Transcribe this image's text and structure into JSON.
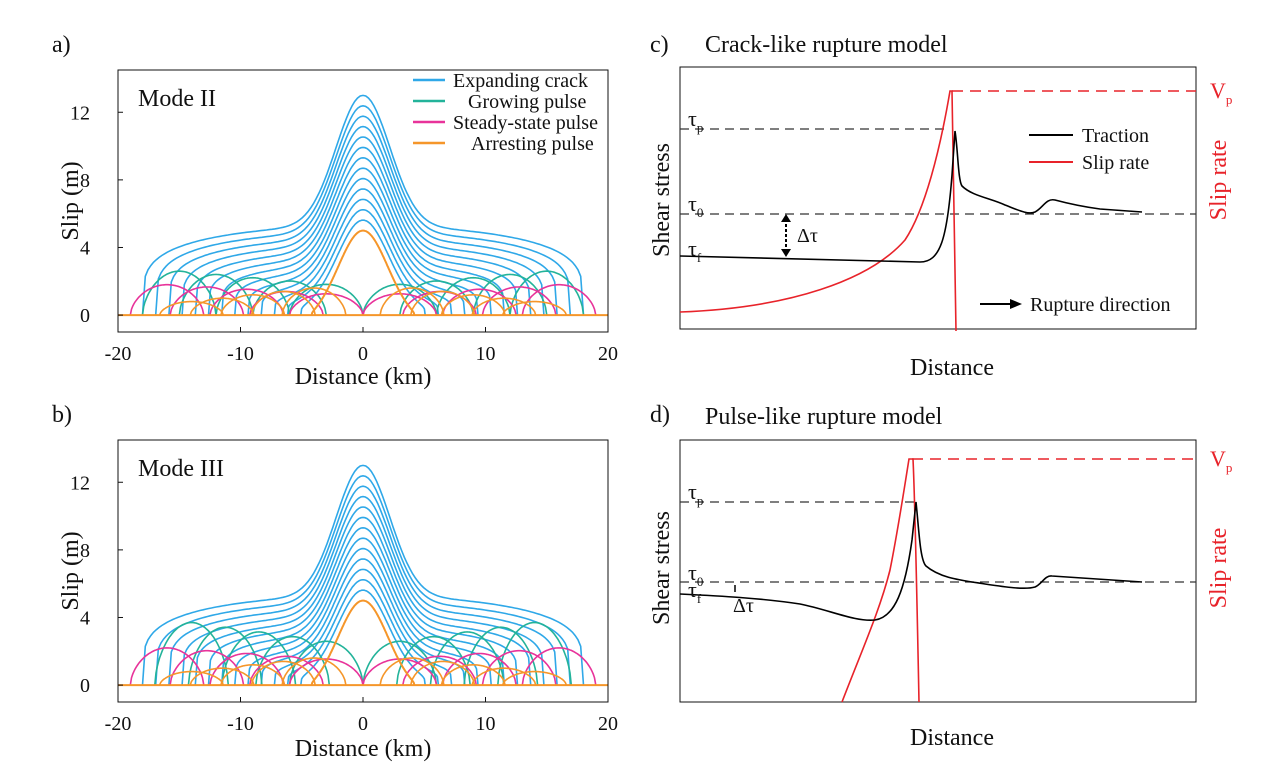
{
  "chart_data": [
    {
      "type": "line",
      "panel_label": "a)",
      "mode_label": "Mode II",
      "xlabel": "Distance (km)",
      "ylabel": "Slip (m)",
      "xlim": [
        -20,
        20
      ],
      "ylim": [
        -1,
        14.5
      ],
      "x_ticks": [
        -20,
        -10,
        0,
        10,
        20
      ],
      "x_tick_labels": [
        "-20",
        "-10",
        "0",
        "10",
        "20"
      ],
      "y_ticks": [
        0,
        4,
        8,
        12
      ],
      "y_tick_labels": [
        "0",
        "4",
        "8",
        "12"
      ],
      "legend": [
        "Expanding crack",
        "Growing pulse",
        "Steady-state pulse",
        "Arresting pulse"
      ],
      "legend_position": "top-right",
      "series": [
        {
          "name": "Expanding crack",
          "color": "#2fa8e8",
          "peak": 13.0,
          "half_width_km": 18.0,
          "count": 13
        },
        {
          "name": "Growing pulse",
          "color": "#23b39a",
          "peak": 5.8,
          "plateau_slip": 2.6,
          "half_width_km": 17.0
        },
        {
          "name": "Steady-state pulse",
          "color": "#e8339a",
          "peak": 5.3,
          "plateau_slip": 1.8,
          "half_width_km": 18.0
        },
        {
          "name": "Arresting pulse",
          "color": "#f5962a",
          "peak": 5.0,
          "half_width_km": 15.0
        }
      ]
    },
    {
      "type": "line",
      "panel_label": "b)",
      "mode_label": "Mode III",
      "xlabel": "Distance (km)",
      "ylabel": "Slip (m)",
      "xlim": [
        -20,
        20
      ],
      "ylim": [
        -1,
        14.5
      ],
      "x_ticks": [
        -20,
        -10,
        0,
        10,
        20
      ],
      "x_tick_labels": [
        "-20",
        "-10",
        "0",
        "10",
        "20"
      ],
      "y_ticks": [
        0,
        4,
        8,
        12
      ],
      "y_tick_labels": [
        "0",
        "4",
        "8",
        "12"
      ],
      "series": [
        {
          "name": "Expanding crack",
          "color": "#2fa8e8",
          "peak": 13.0,
          "half_width_km": 18.0,
          "count": 13
        },
        {
          "name": "Growing pulse",
          "color": "#23b39a",
          "peak": 5.8,
          "plateau_slip": 3.7,
          "half_width_km": 16.0
        },
        {
          "name": "Steady-state pulse",
          "color": "#e8339a",
          "peak": 5.3,
          "plateau_slip": 2.2,
          "half_width_km": 18.0
        },
        {
          "name": "Arresting pulse",
          "color": "#f5962a",
          "peak": 5.0,
          "half_width_km": 15.0
        }
      ]
    },
    {
      "type": "schematic",
      "panel_label": "c)",
      "title": "Crack-like rupture model",
      "xlabel": "Distance",
      "ylabel_left": "Shear stress",
      "ylabel_right": "Slip rate",
      "levels": [
        "τp",
        "τ0",
        "τf"
      ],
      "vp_label": "Vp",
      "delta_label": "Δτ",
      "legend": [
        "Traction",
        "Slip rate"
      ],
      "legend_colors": [
        "#000000",
        "#e8232a"
      ],
      "annotation": "Rupture direction"
    },
    {
      "type": "schematic",
      "panel_label": "d)",
      "title": "Pulse-like rupture model",
      "xlabel": "Distance",
      "ylabel_left": "Shear stress",
      "ylabel_right": "Slip rate",
      "levels": [
        "τp",
        "τ0",
        "τf"
      ],
      "vp_label": "Vp",
      "delta_label": "Δτ"
    }
  ]
}
